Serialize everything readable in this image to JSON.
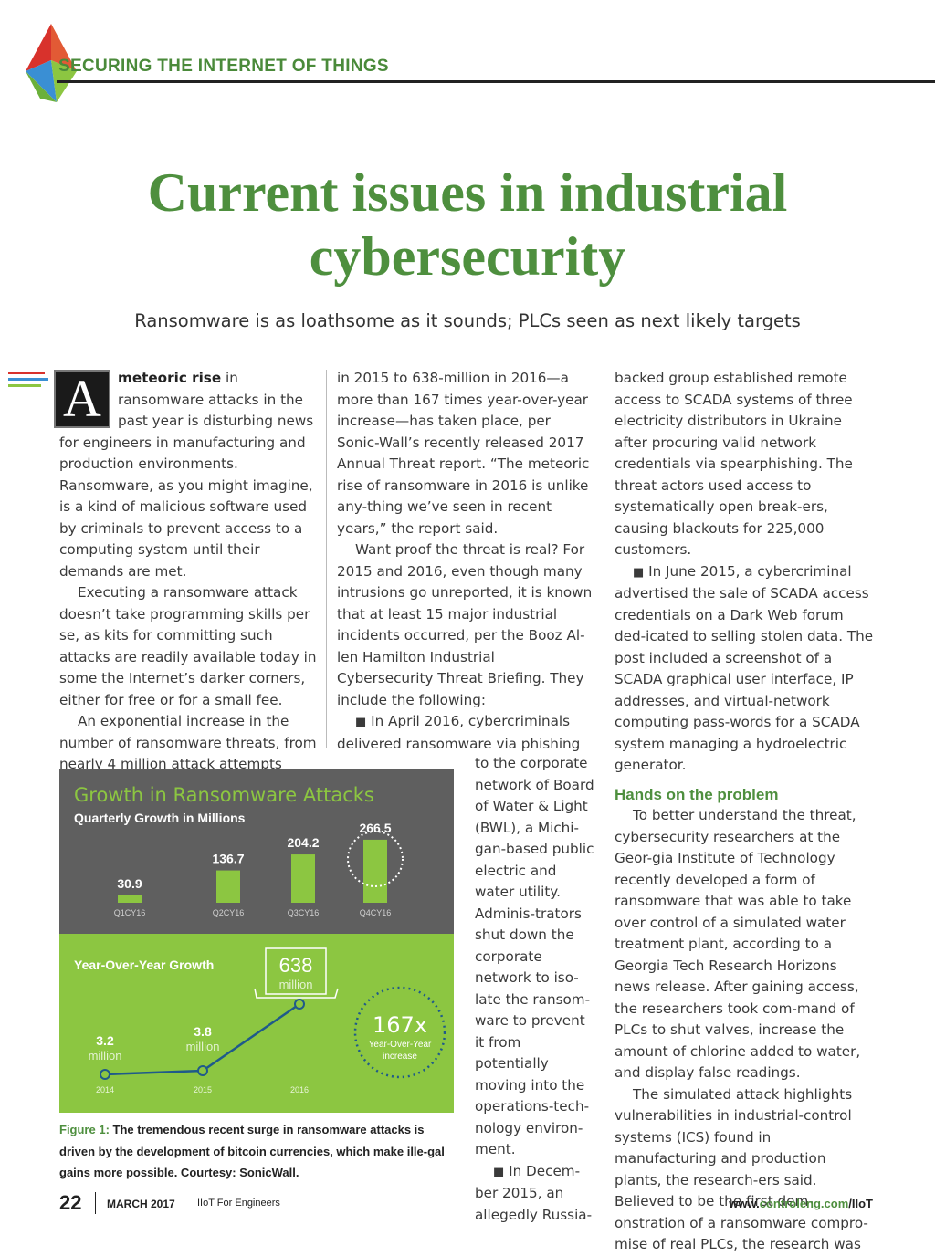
{
  "header": {
    "section_label": "SECURING THE INTERNET OF THINGS"
  },
  "article": {
    "title_line1": "Current issues in industrial",
    "title_line2": "cybersecurity",
    "subtitle": "Ransomware is as loathsome as it sounds; PLCs seen as next likely targets",
    "dropcap": "A",
    "lead_bold": "meteoric rise",
    "col1": {
      "p1_rest": " in ransomware attacks in the past year is disturbing news for engineers in manufacturing and production environments. Ransomware, as you might imagine, is a kind of malicious software used by criminals to prevent access to a computing system until their demands are met.",
      "p2": "Executing a ransomware attack doesn’t take programming skills per se, as kits for committing such attacks are readily available today in some the Internet’s darker corners, either for free or for a small fee.",
      "p3": "An exponential increase in the number of ransomware threats, from nearly 4 million attack attempts"
    },
    "col2": {
      "p1": "in 2015 to 638-million in 2016—a more than 167 times year-over-year increase—has taken place, per Sonic-Wall’s recently released 2017 Annual Threat report. “The meteoric rise of ransomware in 2016 is unlike any-thing we’ve seen in recent years,” the report said.",
      "p2": "Want proof the threat is real? For 2015 and 2016, even though many intrusions go unreported, it is known that at least 15 major industrial incidents occurred, per the Booz Al-len Hamilton Industrial Cybersecurity Threat Briefing. They include the following:",
      "p3": "In April 2016, cybercriminals delivered ransomware via phishing",
      "narrow_p1": "to the corporate network of Board of Water & Light (BWL), a Michi-gan-based public electric and water utility. Adminis-trators shut down the corporate network to iso-late the ransom-ware to prevent it from potentially moving into the operations-tech-nology environ-ment.",
      "narrow_p2": "In Decem-ber 2015, an allegedly Russia-"
    },
    "col3": {
      "p1": "backed group established remote access to SCADA systems of three electricity distributors in Ukraine after procuring valid network credentials via spearphishing. The threat actors used access to systematically open break-ers, causing blackouts for 225,000 customers.",
      "p2": "In June 2015, a cybercriminal advertised the sale of SCADA access credentials on a Dark Web forum ded-icated to selling stolen data. The post included a screenshot of a SCADA graphical user interface, IP addresses, and virtual-network computing pass-words for a SCADA system managing a hydroelectric generator.",
      "subhead": "Hands on the problem",
      "p3": "To better understand the threat, cybersecurity researchers at the Geor-gia Institute of Technology recently developed a form of ransomware that was able to take over control of a simulated water treatment plant, according to a Georgia Tech Research Horizons news release. After gaining access, the researchers took com-mand of PLCs to shut valves, increase the amount of chlorine added to water, and display false readings.",
      "p4": "The simulated attack highlights vulnerabilities in industrial-control systems (ICS) found in manufacturing and production plants, the research-ers said. Believed to be the first dem-onstration of a ransomware compro-mise of real PLCs, the research was"
    },
    "bullet_glyph": "■"
  },
  "figure": {
    "caption_label": "Figure 1:",
    "caption_text": " The tremendous recent surge in ransomware attacks is driven by the development of bitcoin currencies, which make ille-gal gains more possible. Courtesy: SonicWall."
  },
  "chart_data": [
    {
      "type": "bar",
      "title": "Growth in Ransomware Attacks",
      "subtitle": "Quarterly Growth in Millions",
      "categories": [
        "Q1CY16",
        "Q2CY16",
        "Q3CY16",
        "Q4CY16"
      ],
      "values": [
        30.9,
        136.7,
        204.2,
        266.5
      ],
      "value_labels": [
        "30.9",
        "136.7",
        "204.2",
        "266.5"
      ],
      "highlighted": "Q4CY16",
      "colors": {
        "top_bg": "#5f5f5f",
        "bar": "#8cc641",
        "title": "#8cc641"
      }
    },
    {
      "type": "line",
      "title": "Year-Over-Year Growth",
      "x": [
        "2014",
        "2015",
        "2016"
      ],
      "values": [
        3.2,
        3.8,
        638
      ],
      "value_labels": [
        "3.2",
        "3.8",
        "638"
      ],
      "unit_label": "million",
      "callout_value": "167x",
      "callout_text_1": "Year-Over-Year",
      "callout_text_2": "increase",
      "colors": {
        "bottom_bg": "#8cc641",
        "line": "#1f5a8a"
      }
    }
  ],
  "footer": {
    "page_number": "22",
    "issue": "MARCH 2017",
    "publication": "IIoT For Engineers",
    "url_prefix": "www.",
    "url_domain": "controleng.com",
    "url_suffix": "/IIoT"
  }
}
